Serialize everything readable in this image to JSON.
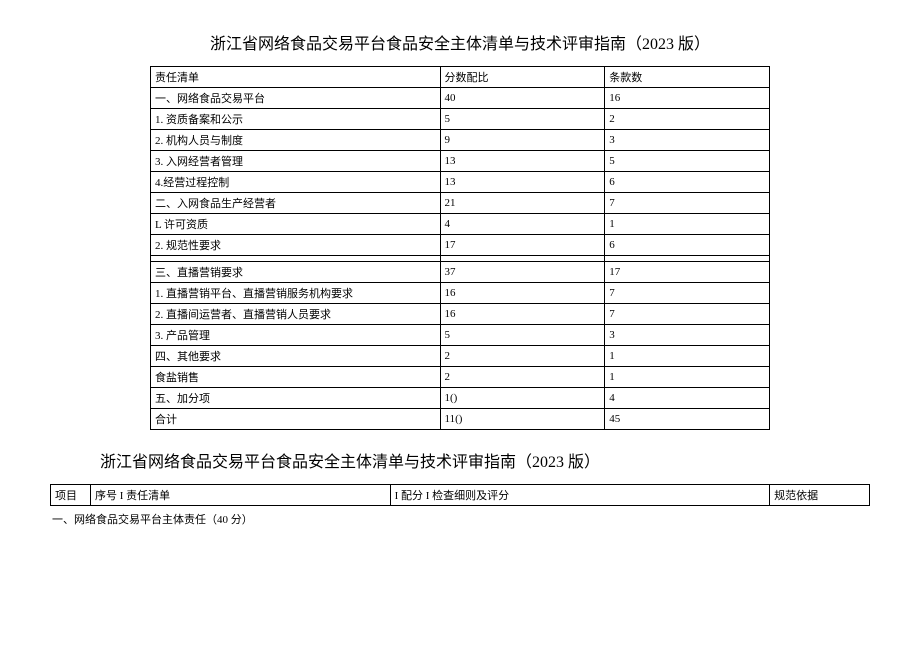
{
  "main_title": "浙江省网络食品交易平台食品安全主体清单与技术评审指南（2023 版）",
  "table1": {
    "header": {
      "c1": "责任清单",
      "c2": "分数配比",
      "c3": "条款数"
    },
    "rows": [
      {
        "c1": "一、网络食品交易平台",
        "c2": "40",
        "c3": "16"
      },
      {
        "c1": "1. 资质备案和公示",
        "c2": "5",
        "c3": "2"
      },
      {
        "c1": "2. 机构人员与制度",
        "c2": "9",
        "c3": "3"
      },
      {
        "c1": "3. 入网经营者管理",
        "c2": "13",
        "c3": "5"
      },
      {
        "c1": "4.经营过程控制",
        "c2": "13",
        "c3": "6"
      },
      {
        "c1": "二、入网食品生产经营者",
        "c2": "21",
        "c3": "7"
      },
      {
        "c1": "L 许可资质",
        "c2": "4",
        "c3": "1"
      },
      {
        "c1": "2. 规范性要求",
        "c2": "17",
        "c3": "6"
      },
      {
        "c1": "三、直播营销要求",
        "c2": "37",
        "c3": "17",
        "divider_before": true
      },
      {
        "c1": "1. 直播营销平台、直播营销服务机构要求",
        "c2": "16",
        "c3": "7"
      },
      {
        "c1": "2. 直播间运营者、直播营销人员要求",
        "c2": "16",
        "c3": "7"
      },
      {
        "c1": "3. 产品管理",
        "c2": "5",
        "c3": "3"
      },
      {
        "c1": "四、其他要求",
        "c2": "2",
        "c3": "1"
      },
      {
        "c1": "食盐销售",
        "c2": "2",
        "c3": "1"
      },
      {
        "c1": "五、加分项",
        "c2": "1()",
        "c3": "4"
      },
      {
        "c1": "合计",
        "c2": "11()",
        "c3": "45"
      }
    ]
  },
  "sub_title": "浙江省网络食品交易平台食品安全主体清单与技术评审指南（2023 版）",
  "table2": {
    "header": {
      "c1": "项目",
      "c2": "序号 I 责任清单",
      "c3": "I 配分 I 检查细则及评分",
      "c4": "规范依据"
    }
  },
  "footer_line": "一、网络食品交易平台主体责任（40 分）"
}
